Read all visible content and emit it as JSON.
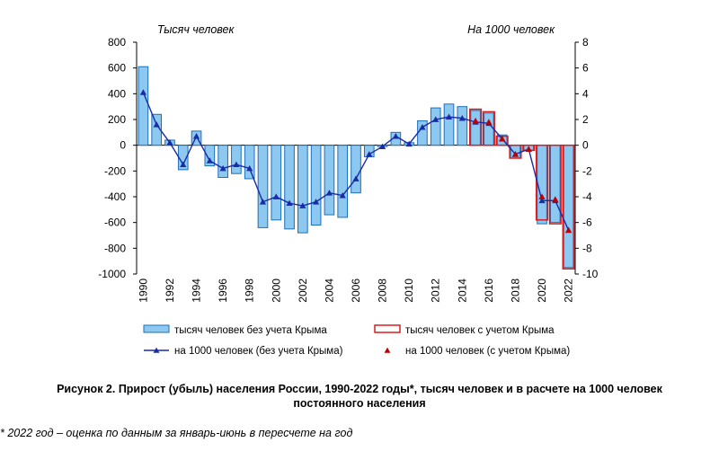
{
  "chart_data": {
    "type": "bar",
    "left_axis_label": "Тысяч человек",
    "right_axis_label": "На 1000 человек",
    "y_left": {
      "min": -1000,
      "max": 800,
      "step": 200
    },
    "y_right": {
      "min": -10,
      "max": 8,
      "step": 2
    },
    "x": [
      1990,
      1991,
      1992,
      1993,
      1994,
      1995,
      1996,
      1997,
      1998,
      1999,
      2000,
      2001,
      2002,
      2003,
      2004,
      2005,
      2006,
      2007,
      2008,
      2009,
      2010,
      2011,
      2012,
      2013,
      2014,
      2015,
      2016,
      2017,
      2018,
      2019,
      2020,
      2021,
      2022
    ],
    "x_tick_labels": [
      "1990",
      "1992",
      "1994",
      "1996",
      "1998",
      "2000",
      "2002",
      "2004",
      "2006",
      "2008",
      "2010",
      "2012",
      "2014",
      "2016",
      "2018",
      "2020",
      "2022"
    ],
    "series": [
      {
        "name": "тысяч человек без учета Крыма",
        "kind": "bar",
        "axis": "left",
        "values": [
          610,
          240,
          40,
          -190,
          110,
          -160,
          -250,
          -220,
          -260,
          -640,
          -580,
          -650,
          -680,
          -620,
          -540,
          -560,
          -370,
          -90,
          -10,
          100,
          20,
          190,
          290,
          320,
          300,
          270,
          250,
          80,
          -100,
          -40,
          -610,
          -600,
          -950
        ]
      },
      {
        "name": "тысяч человек с учетом Крыма",
        "kind": "bar-outline",
        "axis": "left",
        "values": [
          null,
          null,
          null,
          null,
          null,
          null,
          null,
          null,
          null,
          null,
          null,
          null,
          null,
          null,
          null,
          null,
          null,
          null,
          null,
          null,
          null,
          null,
          null,
          null,
          null,
          280,
          260,
          70,
          -100,
          -40,
          -580,
          -610,
          -960
        ]
      },
      {
        "name": "на 1000 человек (без учета Крыма)",
        "kind": "line",
        "axis": "right",
        "values": [
          4.1,
          1.6,
          0.2,
          -1.5,
          0.7,
          -1.2,
          -1.8,
          -1.5,
          -1.8,
          -4.4,
          -4.0,
          -4.5,
          -4.7,
          -4.4,
          -3.7,
          -3.9,
          -2.6,
          -0.7,
          -0.1,
          0.7,
          0.1,
          1.4,
          2.0,
          2.2,
          2.1,
          1.8,
          1.7,
          0.5,
          -0.7,
          -0.3,
          -4.3,
          -4.3,
          -6.6
        ]
      },
      {
        "name": "на 1000 человек (с учетом Крыма)",
        "kind": "markers",
        "axis": "right",
        "values": [
          null,
          null,
          null,
          null,
          null,
          null,
          null,
          null,
          null,
          null,
          null,
          null,
          null,
          null,
          null,
          null,
          null,
          null,
          null,
          null,
          null,
          null,
          null,
          null,
          null,
          1.9,
          1.8,
          0.5,
          -0.7,
          -0.3,
          -4.0,
          -4.2,
          -6.6
        ]
      }
    ],
    "colors": {
      "bar_fill": "#8dc8f0",
      "bar_edge": "#1e6fb8",
      "outline_bar": "#d81e1e",
      "line": "#1a2ba8",
      "marker_crimea": "#c00000",
      "plot_bg": "#ffffff",
      "grid": "#a0a0a0"
    }
  },
  "caption_line1": "Рисунок 2. Прирост (убыль) населения России, 1990-2022 годы*, тысяч человек и в расчете на 1000 человек",
  "caption_line2": "постоянного населения",
  "footnote": "* 2022 год – оценка по данным за январь-июнь в пересчете на год"
}
